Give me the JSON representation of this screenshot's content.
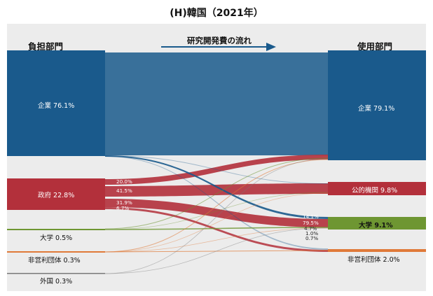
{
  "title": "(H)韓国（2021年）",
  "left_header": "負担部門",
  "right_header": "使用部門",
  "flow_title": "研究開発費の流れ",
  "colors": {
    "company": "#1a5a8c",
    "government": "#b3303b",
    "university": "#6e9632",
    "nonprofit": "#e07a39",
    "foreign": "#7a7a7a",
    "public": "#b3303b"
  },
  "sources": [
    {
      "name": "企業",
      "value_label": "76.1%"
    },
    {
      "name": "政府",
      "value_label": "22.8%"
    },
    {
      "name": "大学",
      "value_label": "0.5%"
    },
    {
      "name": "非営利団体",
      "value_label": "0.3%"
    },
    {
      "name": "外国",
      "value_label": "0.3%"
    }
  ],
  "targets": [
    {
      "name": "企業",
      "value_label": "79.1%"
    },
    {
      "name": "公的機関",
      "value_label": "9.8%"
    },
    {
      "name": "大学",
      "value_label": "9.1%"
    },
    {
      "name": "非営利団体",
      "value_label": "2.0%"
    }
  ],
  "government_out_labels": [
    "20.0%",
    "41.5%",
    "31.9%",
    "6.7%"
  ],
  "university_in_labels": [
    "14.1%",
    "79.5%",
    "4.7%",
    "1.0%",
    "0.7%"
  ]
}
